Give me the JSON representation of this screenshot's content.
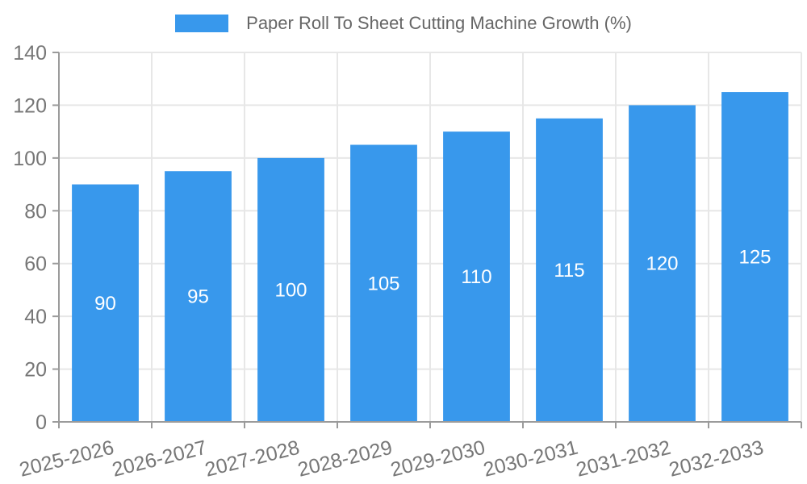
{
  "chart_data": {
    "type": "bar",
    "title": "Paper Roll To Sheet Cutting Machine Growth (%)",
    "legend": {
      "label": "Paper Roll To Sheet Cutting Machine Growth (%)",
      "position": "top"
    },
    "categories": [
      "2025-2026",
      "2026-2027",
      "2027-2028",
      "2028-2029",
      "2029-2030",
      "2030-2031",
      "2031-2032",
      "2032-2033"
    ],
    "values": [
      90,
      95,
      100,
      105,
      110,
      115,
      120,
      125
    ],
    "value_labels": [
      "90",
      "95",
      "100",
      "105",
      "110",
      "115",
      "120",
      "125"
    ],
    "xlabel": "",
    "ylabel": "",
    "ylim": [
      0,
      140
    ],
    "ytick_step": 20,
    "yticks": [
      0,
      20,
      40,
      60,
      80,
      100,
      120,
      140
    ],
    "grid": true,
    "x_label_rotation_deg": -14,
    "colors": {
      "bar": "#3898ec",
      "value_label": "#ffffff",
      "axis": "#9b9b9b",
      "grid": "#e7e7e7",
      "tick_label": "#777777",
      "legend_text": "#666666",
      "background": "#ffffff"
    }
  }
}
